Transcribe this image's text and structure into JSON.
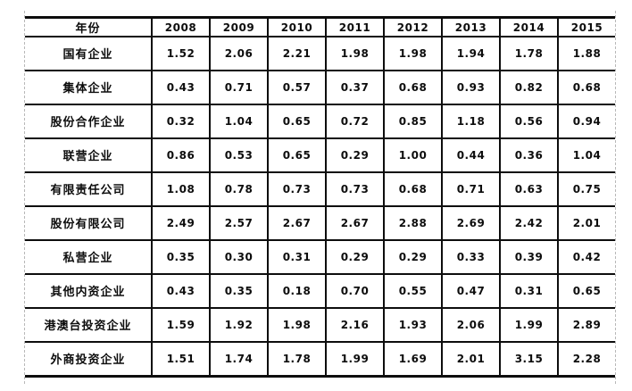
{
  "table": {
    "header": [
      "年份",
      "2008",
      "2009",
      "2010",
      "2011",
      "2012",
      "2013",
      "2014",
      "2015"
    ],
    "rows": [
      {
        "label": "国有企业",
        "values": [
          "1.52",
          "2.06",
          "2.21",
          "1.98",
          "1.98",
          "1.94",
          "1.78",
          "1.88"
        ]
      },
      {
        "label": "集体企业",
        "values": [
          "0.43",
          "0.71",
          "0.57",
          "0.37",
          "0.68",
          "0.93",
          "0.82",
          "0.68"
        ]
      },
      {
        "label": "股份合作企业",
        "values": [
          "0.32",
          "1.04",
          "0.65",
          "0.72",
          "0.85",
          "1.18",
          "0.56",
          "0.94"
        ]
      },
      {
        "label": "联营企业",
        "values": [
          "0.86",
          "0.53",
          "0.65",
          "0.29",
          "1.00",
          "0.44",
          "0.36",
          "1.04"
        ]
      },
      {
        "label": "有限责任公司",
        "values": [
          "1.08",
          "0.78",
          "0.73",
          "0.73",
          "0.68",
          "0.71",
          "0.63",
          "0.75"
        ]
      },
      {
        "label": "股份有限公司",
        "values": [
          "2.49",
          "2.57",
          "2.67",
          "2.67",
          "2.88",
          "2.69",
          "2.42",
          "2.01"
        ]
      },
      {
        "label": "私营企业",
        "values": [
          "0.35",
          "0.30",
          "0.31",
          "0.29",
          "0.29",
          "0.33",
          "0.39",
          "0.42"
        ]
      },
      {
        "label": "其他内资企业",
        "values": [
          "0.43",
          "0.35",
          "0.18",
          "0.70",
          "0.55",
          "0.47",
          "0.31",
          "0.65"
        ]
      },
      {
        "label": "港澳台投资企业",
        "values": [
          "1.59",
          "1.92",
          "1.98",
          "2.16",
          "1.93",
          "2.06",
          "1.99",
          "2.89"
        ]
      },
      {
        "label": "外商投资企业",
        "values": [
          "1.51",
          "1.74",
          "1.78",
          "1.99",
          "1.69",
          "2.01",
          "3.15",
          "2.28"
        ]
      }
    ]
  },
  "chart_data": {
    "type": "table",
    "title": "",
    "categories": [
      "2008",
      "2009",
      "2010",
      "2011",
      "2012",
      "2013",
      "2014",
      "2015"
    ],
    "row_header_label": "年份",
    "series": [
      {
        "name": "国有企业",
        "values": [
          1.52,
          2.06,
          2.21,
          1.98,
          1.98,
          1.94,
          1.78,
          1.88
        ]
      },
      {
        "name": "集体企业",
        "values": [
          0.43,
          0.71,
          0.57,
          0.37,
          0.68,
          0.93,
          0.82,
          0.68
        ]
      },
      {
        "name": "股份合作企业",
        "values": [
          0.32,
          1.04,
          0.65,
          0.72,
          0.85,
          1.18,
          0.56,
          0.94
        ]
      },
      {
        "name": "联营企业",
        "values": [
          0.86,
          0.53,
          0.65,
          0.29,
          1.0,
          0.44,
          0.36,
          1.04
        ]
      },
      {
        "name": "有限责任公司",
        "values": [
          1.08,
          0.78,
          0.73,
          0.73,
          0.68,
          0.71,
          0.63,
          0.75
        ]
      },
      {
        "name": "股份有限公司",
        "values": [
          2.49,
          2.57,
          2.67,
          2.67,
          2.88,
          2.69,
          2.42,
          2.01
        ]
      },
      {
        "name": "私营企业",
        "values": [
          0.35,
          0.3,
          0.31,
          0.29,
          0.29,
          0.33,
          0.39,
          0.42
        ]
      },
      {
        "name": "其他内资企业",
        "values": [
          0.43,
          0.35,
          0.18,
          0.7,
          0.55,
          0.47,
          0.31,
          0.65
        ]
      },
      {
        "name": "港澳台投资企业",
        "values": [
          1.59,
          1.92,
          1.98,
          2.16,
          1.93,
          2.06,
          1.99,
          2.89
        ]
      },
      {
        "name": "外商投资企业",
        "values": [
          1.51,
          1.74,
          1.78,
          1.99,
          1.69,
          2.01,
          3.15,
          2.28
        ]
      }
    ]
  },
  "colors": {
    "grid_line": "#0d0d0d",
    "boundary_dash": "#b8b8b8",
    "text": "#0d0d0d",
    "background": "#ffffff"
  }
}
